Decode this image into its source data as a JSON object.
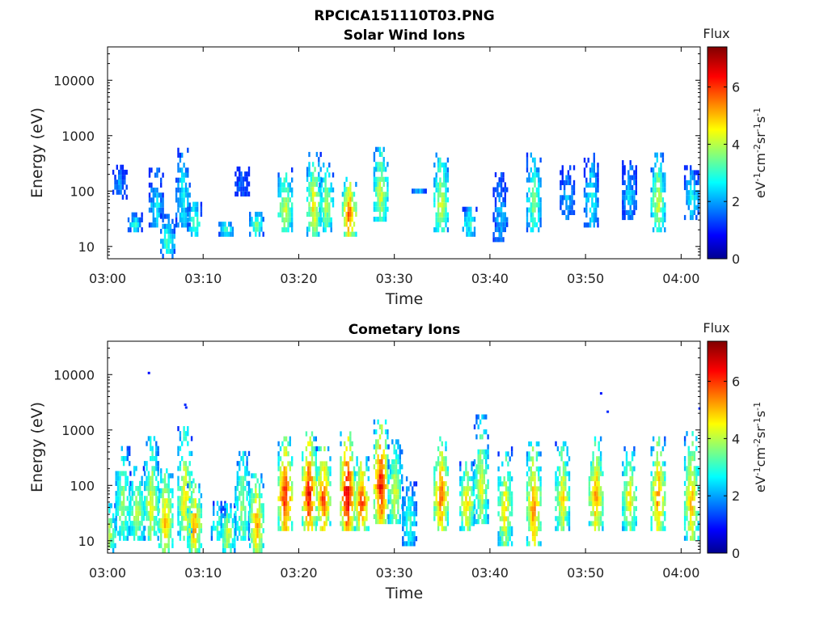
{
  "figure": {
    "filename_title": "RPCICA151110T03.PNG"
  },
  "chart_data": [
    {
      "type": "heatmap",
      "title": "Solar Wind Ions",
      "xlabel": "Time",
      "ylabel": "Energy (eV)",
      "yscale": "log",
      "ylim": [
        6,
        40000
      ],
      "xlim_minutes": [
        0,
        62
      ],
      "xticks": [
        "03:00",
        "03:10",
        "03:20",
        "03:30",
        "03:40",
        "03:50",
        "04:00"
      ],
      "xtick_minutes": [
        0,
        10,
        20,
        30,
        40,
        50,
        60
      ],
      "yticks": [
        "10",
        "100",
        "1000",
        "10000"
      ],
      "ytick_values": [
        10,
        100,
        1000,
        10000
      ],
      "colorbar": {
        "title": "Flux",
        "label_parts": [
          "eV",
          "-1",
          "cm",
          "-2",
          "sr",
          "-1",
          "s",
          "-1"
        ],
        "range": [
          0,
          7.4
        ],
        "ticks": [
          "0",
          "2",
          "4",
          "6"
        ],
        "tick_values": [
          0,
          2,
          4,
          6
        ],
        "colormap": "jet"
      },
      "bursts": [
        {
          "t": 1.2,
          "e_low": 70,
          "e_high": 260,
          "peak": 2.2
        },
        {
          "t": 2.8,
          "e_low": 18,
          "e_high": 35,
          "peak": 3.0
        },
        {
          "t": 5.0,
          "e_low": 22,
          "e_high": 220,
          "peak": 2.8
        },
        {
          "t": 6.2,
          "e_low": 6,
          "e_high": 35,
          "peak": 3.4
        },
        {
          "t": 7.8,
          "e_low": 22,
          "e_high": 500,
          "peak": 3.0
        },
        {
          "t": 9.0,
          "e_low": 15,
          "e_high": 60,
          "peak": 3.6
        },
        {
          "t": 12.3,
          "e_low": 15,
          "e_high": 25,
          "peak": 3.4
        },
        {
          "t": 14.0,
          "e_low": 80,
          "e_high": 260,
          "peak": 2.0
        },
        {
          "t": 15.5,
          "e_low": 15,
          "e_high": 40,
          "peak": 3.8
        },
        {
          "t": 18.5,
          "e_low": 18,
          "e_high": 230,
          "peak": 4.6
        },
        {
          "t": 21.5,
          "e_low": 15,
          "e_high": 420,
          "peak": 5.0
        },
        {
          "t": 22.8,
          "e_low": 18,
          "e_high": 300,
          "peak": 4.2
        },
        {
          "t": 25.2,
          "e_low": 15,
          "e_high": 160,
          "peak": 6.1
        },
        {
          "t": 28.5,
          "e_low": 28,
          "e_high": 620,
          "peak": 4.5
        },
        {
          "t": 32.5,
          "e_low": 90,
          "e_high": 110,
          "peak": 2.5
        },
        {
          "t": 34.8,
          "e_low": 18,
          "e_high": 450,
          "peak": 4.6
        },
        {
          "t": 37.8,
          "e_low": 15,
          "e_high": 50,
          "peak": 3.2
        },
        {
          "t": 41.0,
          "e_low": 12,
          "e_high": 200,
          "peak": 2.4
        },
        {
          "t": 44.5,
          "e_low": 18,
          "e_high": 460,
          "peak": 3.8
        },
        {
          "t": 48.0,
          "e_low": 30,
          "e_high": 260,
          "peak": 2.4
        },
        {
          "t": 50.5,
          "e_low": 22,
          "e_high": 420,
          "peak": 3.0
        },
        {
          "t": 54.5,
          "e_low": 30,
          "e_high": 330,
          "peak": 2.6
        },
        {
          "t": 57.5,
          "e_low": 18,
          "e_high": 460,
          "peak": 4.4
        },
        {
          "t": 61.0,
          "e_low": 30,
          "e_high": 260,
          "peak": 3.0
        }
      ]
    },
    {
      "type": "heatmap",
      "title": "Cometary Ions",
      "xlabel": "Time",
      "ylabel": "Energy (eV)",
      "yscale": "log",
      "ylim": [
        6,
        40000
      ],
      "xlim_minutes": [
        0,
        62
      ],
      "xticks": [
        "03:00",
        "03:10",
        "03:20",
        "03:30",
        "03:40",
        "03:50",
        "04:00"
      ],
      "xtick_minutes": [
        0,
        10,
        20,
        30,
        40,
        50,
        60
      ],
      "yticks": [
        "10",
        "100",
        "1000",
        "10000"
      ],
      "ytick_values": [
        10,
        100,
        1000,
        10000
      ],
      "colorbar": {
        "title": "Flux",
        "label_parts": [
          "eV",
          "-1",
          "cm",
          "-2",
          "sr",
          "-1",
          "s",
          "-1"
        ],
        "range": [
          0,
          7.4
        ],
        "ticks": [
          "0",
          "2",
          "4",
          "6"
        ],
        "tick_values": [
          0,
          2,
          4,
          6
        ],
        "colormap": "jet"
      },
      "bursts": [
        {
          "t": 0.0,
          "e_low": 6,
          "e_high": 45,
          "peak": 4.5
        },
        {
          "t": 1.5,
          "e_low": 10,
          "e_high": 500,
          "peak": 4.2
        },
        {
          "t": 3.0,
          "e_low": 10,
          "e_high": 200,
          "peak": 4.6
        },
        {
          "t": 4.5,
          "e_low": 10,
          "e_high": 650,
          "peak": 4.8
        },
        {
          "t": 6.0,
          "e_low": 6,
          "e_high": 200,
          "peak": 5.4
        },
        {
          "t": 8.0,
          "e_low": 10,
          "e_high": 1100,
          "peak": 5.0
        },
        {
          "t": 9.0,
          "e_low": 6,
          "e_high": 120,
          "peak": 5.6
        },
        {
          "t": 11.5,
          "e_low": 10,
          "e_high": 45,
          "peak": 3.6
        },
        {
          "t": 12.5,
          "e_low": 6,
          "e_high": 40,
          "peak": 4.6
        },
        {
          "t": 14.0,
          "e_low": 10,
          "e_high": 500,
          "peak": 4.2
        },
        {
          "t": 15.5,
          "e_low": 6,
          "e_high": 160,
          "peak": 5.6
        },
        {
          "t": 18.5,
          "e_low": 15,
          "e_high": 700,
          "peak": 6.6
        },
        {
          "t": 21.0,
          "e_low": 15,
          "e_high": 800,
          "peak": 6.8
        },
        {
          "t": 22.5,
          "e_low": 15,
          "e_high": 500,
          "peak": 6.2
        },
        {
          "t": 25.0,
          "e_low": 15,
          "e_high": 900,
          "peak": 7.2
        },
        {
          "t": 26.5,
          "e_low": 15,
          "e_high": 300,
          "peak": 6.4
        },
        {
          "t": 28.5,
          "e_low": 20,
          "e_high": 1400,
          "peak": 6.8
        },
        {
          "t": 30.0,
          "e_low": 20,
          "e_high": 600,
          "peak": 4.6
        },
        {
          "t": 31.5,
          "e_low": 8,
          "e_high": 120,
          "peak": 3.4
        },
        {
          "t": 34.8,
          "e_low": 15,
          "e_high": 700,
          "peak": 6.0
        },
        {
          "t": 37.5,
          "e_low": 15,
          "e_high": 250,
          "peak": 5.2
        },
        {
          "t": 39.0,
          "e_low": 20,
          "e_high": 1700,
          "peak": 4.6
        },
        {
          "t": 41.5,
          "e_low": 8,
          "e_high": 500,
          "peak": 5.0
        },
        {
          "t": 44.5,
          "e_low": 8,
          "e_high": 600,
          "peak": 5.8
        },
        {
          "t": 47.5,
          "e_low": 15,
          "e_high": 600,
          "peak": 5.0
        },
        {
          "t": 51.0,
          "e_low": 15,
          "e_high": 650,
          "peak": 5.6
        },
        {
          "t": 54.5,
          "e_low": 15,
          "e_high": 500,
          "peak": 5.0
        },
        {
          "t": 57.5,
          "e_low": 15,
          "e_high": 750,
          "peak": 5.8
        },
        {
          "t": 61.0,
          "e_low": 10,
          "e_high": 800,
          "peak": 5.4
        }
      ],
      "isolated_points": [
        {
          "t": 4.2,
          "e": 10500,
          "v": 1.0
        },
        {
          "t": 8.0,
          "e": 2800,
          "v": 1.2
        },
        {
          "t": 8.1,
          "e": 2500,
          "v": 1.2
        },
        {
          "t": 51.5,
          "e": 4500,
          "v": 1.1
        },
        {
          "t": 52.2,
          "e": 2100,
          "v": 1.2
        },
        {
          "t": 61.8,
          "e": 2400,
          "v": 1.2
        }
      ]
    }
  ]
}
